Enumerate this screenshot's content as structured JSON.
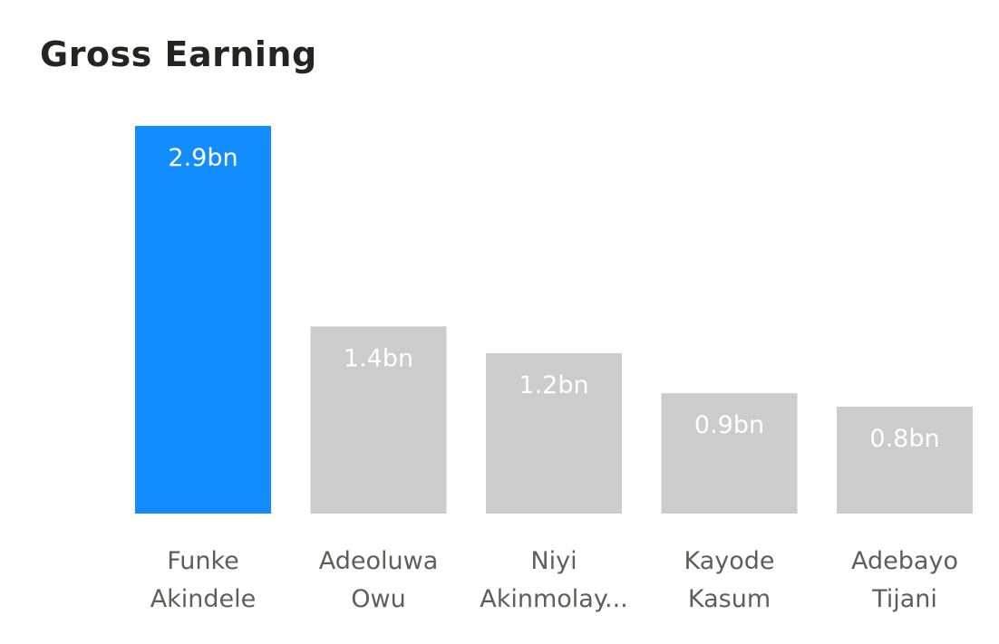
{
  "title": "Gross Earning",
  "colors": {
    "highlight": "#118dff",
    "default": "#cccccc",
    "data_label": "#ffffff",
    "category_label": "#605e5c",
    "title": "#252423"
  },
  "chart_data": {
    "type": "bar",
    "title": "Gross Earning",
    "categories": [
      [
        "Funke",
        "Akindele"
      ],
      [
        "Adeoluwa",
        "Owu"
      ],
      [
        "Niyi",
        "Akinmolay..."
      ],
      [
        "Kayode",
        "Kasum"
      ],
      [
        "Adebayo",
        "Tijani"
      ]
    ],
    "values": [
      2.9,
      1.4,
      1.2,
      0.9,
      0.8
    ],
    "data_labels": [
      "2.9bn",
      "1.4bn",
      "1.2bn",
      "0.9bn",
      "0.8bn"
    ],
    "highlighted_index": 0,
    "ylim": [
      0,
      2.9
    ],
    "grid": false,
    "legend": "none"
  }
}
